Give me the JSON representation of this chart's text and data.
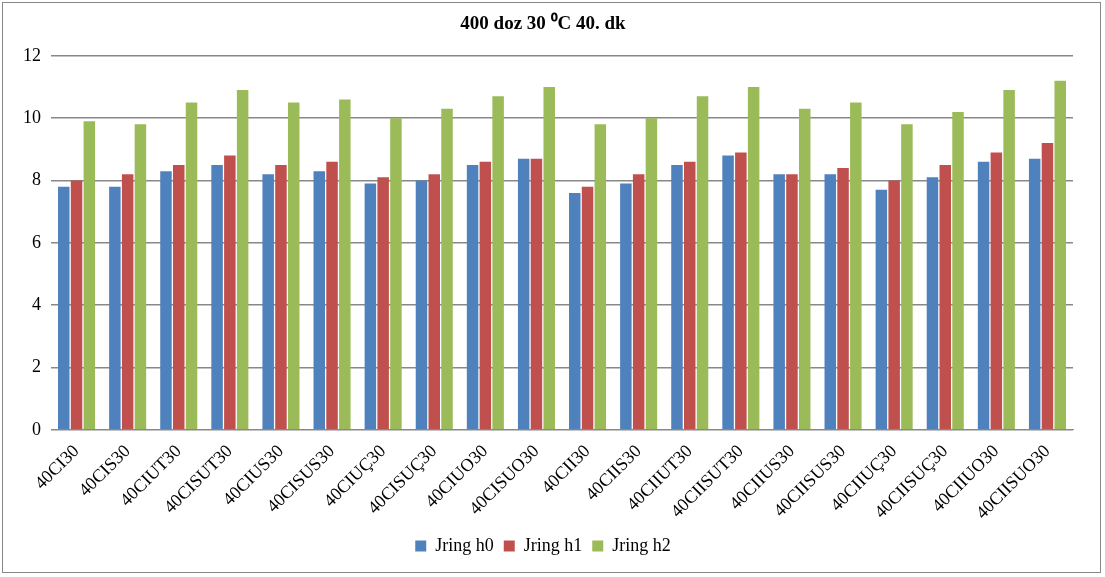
{
  "chart_data": {
    "type": "bar",
    "title": "400 doz 30 ⁰C 40. dk",
    "categories": [
      "40CI30",
      "40CIS30",
      "40CIUT30",
      "40CISUT30",
      "40CIUS30",
      "40CISUS30",
      "40CIUÇ30",
      "40CISUÇ30",
      "40CIUO30",
      "40CISUO30",
      "40CII30",
      "40CIIS30",
      "40CIIUT30",
      "40CIISUT30",
      "40CIIUS30",
      "40CIISUS30",
      "40CIIUÇ30",
      "40CIISUÇ30",
      "40CIIUO30",
      "40CIISUO30"
    ],
    "series": [
      {
        "name": "Jring h0",
        "color": "#4f81bd",
        "values": [
          7.8,
          7.8,
          8.3,
          8.5,
          8.2,
          8.3,
          7.9,
          8.0,
          8.5,
          8.7,
          7.6,
          7.9,
          8.5,
          8.8,
          8.2,
          8.2,
          7.7,
          8.1,
          8.6,
          8.7
        ]
      },
      {
        "name": "Jring h1",
        "color": "#c0504d",
        "values": [
          8.0,
          8.2,
          8.5,
          8.8,
          8.5,
          8.6,
          8.1,
          8.2,
          8.6,
          8.7,
          7.8,
          8.2,
          8.6,
          8.9,
          8.2,
          8.4,
          8.0,
          8.5,
          8.9,
          9.2
        ]
      },
      {
        "name": "Jring h2",
        "color": "#9bbb59",
        "values": [
          9.9,
          9.8,
          10.5,
          10.9,
          10.5,
          10.6,
          10.0,
          10.3,
          10.7,
          11.0,
          9.8,
          10.0,
          10.7,
          11.0,
          10.3,
          10.5,
          9.8,
          10.2,
          10.9,
          11.2
        ]
      }
    ],
    "ylim": [
      0,
      12
    ],
    "yticks": [
      0,
      2,
      4,
      6,
      8,
      10,
      12
    ],
    "grid": "y",
    "legend": "bottom"
  }
}
